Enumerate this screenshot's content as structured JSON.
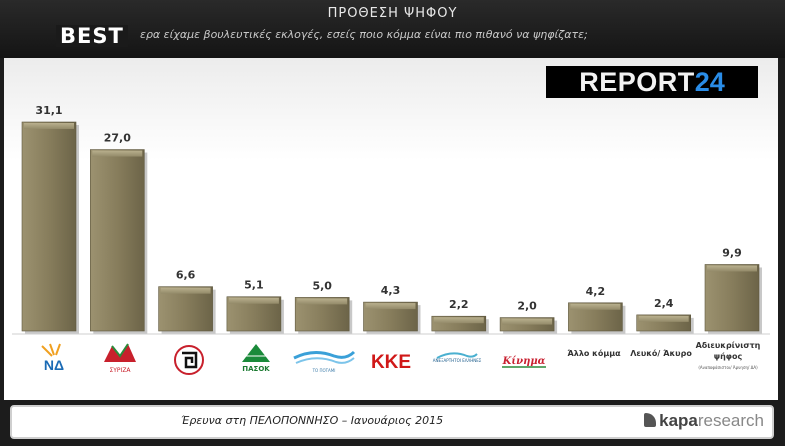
{
  "header": {
    "title": "ΠΡΟΘΕΣΗ ΨΗΦΟΥ",
    "question": "ερα είχαμε βουλευτικές εκλογές, εσείς ποιο κόμμα είναι πιο πιθανό να ψηφίζατε;"
  },
  "logos": {
    "best": "BEST",
    "report_text": "REPORT",
    "report_num": "24",
    "kapa_1": "kapa",
    "kapa_2": "research"
  },
  "chart_data": {
    "type": "bar",
    "title": "ΠΡΟΘΕΣΗ ΨΗΦΟΥ",
    "categories": [
      "ΝΔ",
      "ΣΥΡΙΖΑ",
      "Χρυσή Αυγή",
      "ΠΑΣΟΚ",
      "Το Ποτάμι",
      "ΚΚΕ",
      "Ανεξάρτητοι Έλληνες",
      "Κίνημα",
      "Άλλο κόμμα",
      "Λευκό/ Άκυρο",
      "Αδιευκρίνιστη ψήφος"
    ],
    "values": [
      31.1,
      27.0,
      6.6,
      5.1,
      5.0,
      4.3,
      2.2,
      2.0,
      4.2,
      2.4,
      9.9
    ],
    "value_labels": [
      "31,1",
      "27,0",
      "6,6",
      "5,1",
      "5,0",
      "4,3",
      "2,2",
      "2,0",
      "4,2",
      "2,4",
      "9,9"
    ],
    "ylim": [
      0,
      35
    ],
    "bar_color": "#8a8060",
    "grid": false
  },
  "x_labels": {
    "nd": "ΝΔ",
    "syriza": "ΣΥΡΙΖΑ",
    "pasok": "ΠΑΣΟΚ",
    "potami": "ΤΟ ΠΟΤΑΜΙ",
    "kke": "ΚΚΕ",
    "anel": "ΑΝΕΞΑΡΤΗΤΟΙ ΕΛΛΗΝΕΣ",
    "kinima": "Κίνημα",
    "allo": "Άλλο κόμμα",
    "lefko": "Λευκό/ Άκυρο",
    "adiev_1": "Αδιευκρίνιστη",
    "adiev_2": "ψήφος",
    "adiev_3": "(Αναποφάσιστοι/ Άρνηση/ ΔΑ)"
  },
  "footer": {
    "caption": "Έρευνα στη ΠΕΛΟΠΟΝΝΗΣΟ – Ιανουάριος 2015"
  }
}
